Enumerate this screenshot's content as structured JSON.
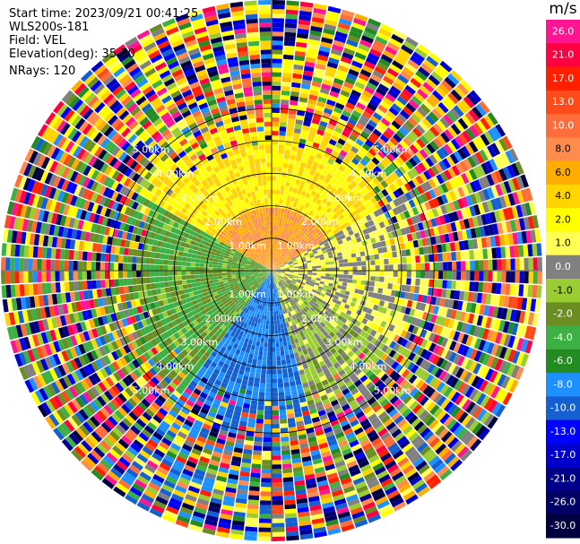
{
  "info": {
    "start_time": "Start time: 2023/09/21 00:41:25",
    "instrument": "WLS200s-181",
    "field": "Field: VEL",
    "elevation": "Elevation(deg): 35.30",
    "nrays": "NRays: 120"
  },
  "colorbar": {
    "unit": "m/s",
    "bins": [
      {
        "label": "26.0",
        "color": "#ff1493"
      },
      {
        "label": "21.0",
        "color": "#ff0040"
      },
      {
        "label": "17.0",
        "color": "#ff2000"
      },
      {
        "label": "13.0",
        "color": "#ff4a1a"
      },
      {
        "label": "10.0",
        "color": "#ff6e3a"
      },
      {
        "label": "8.0",
        "color": "#ff8c4c"
      },
      {
        "label": "6.0",
        "color": "#ffad00"
      },
      {
        "label": "4.0",
        "color": "#ffd400"
      },
      {
        "label": "2.0",
        "color": "#ffff00"
      },
      {
        "label": "1.0",
        "color": "#ffff55"
      },
      {
        "label": "0.0",
        "color": "#808080"
      },
      {
        "label": "-1.0",
        "color": "#9acd32"
      },
      {
        "label": "-2.0",
        "color": "#6b8e23"
      },
      {
        "label": "-4.0",
        "color": "#3cb043"
      },
      {
        "label": "-6.0",
        "color": "#228b22"
      },
      {
        "label": "-8.0",
        "color": "#1e90ff"
      },
      {
        "label": "-10.0",
        "color": "#1560d0"
      },
      {
        "label": "-13.0",
        "color": "#0000ff"
      },
      {
        "label": "-17.0",
        "color": "#0000cd"
      },
      {
        "label": "-21.0",
        "color": "#00008b"
      },
      {
        "label": "-26.0",
        "color": "#000066"
      },
      {
        "label": "-30.0",
        "color": "#000040"
      }
    ]
  },
  "chart_data": {
    "type": "heatmap",
    "field": "VEL",
    "unit": "m/s",
    "nrays": 120,
    "elevation_deg": 35.3,
    "range_rings_km": [
      1.0,
      2.0,
      3.0,
      4.0,
      5.0
    ],
    "ring_labels": [
      "1.00km",
      "2.00km",
      "3.00km",
      "4.00km",
      "5.00km"
    ],
    "color_levels": [
      26.0,
      21.0,
      17.0,
      13.0,
      10.0,
      8.0,
      6.0,
      4.0,
      2.0,
      1.0,
      0.0,
      -1.0,
      -2.0,
      -4.0,
      -6.0,
      -8.0,
      -10.0,
      -13.0,
      -17.0,
      -21.0,
      -26.0,
      -30.0
    ],
    "max_range_km": 5.0,
    "velocity_sectors": [
      {
        "azimuth_from_deg": 300,
        "azimuth_to_deg": 60,
        "velocity_ms": 4.0
      },
      {
        "azimuth_from_deg": 60,
        "azimuth_to_deg": 120,
        "velocity_ms": 1.0
      },
      {
        "azimuth_from_deg": 120,
        "azimuth_to_deg": 165,
        "velocity_ms": 0.0
      },
      {
        "azimuth_from_deg": 165,
        "azimuth_to_deg": 215,
        "velocity_ms": -8.0
      },
      {
        "azimuth_from_deg": 215,
        "azimuth_to_deg": 300,
        "velocity_ms": -2.0
      }
    ]
  }
}
